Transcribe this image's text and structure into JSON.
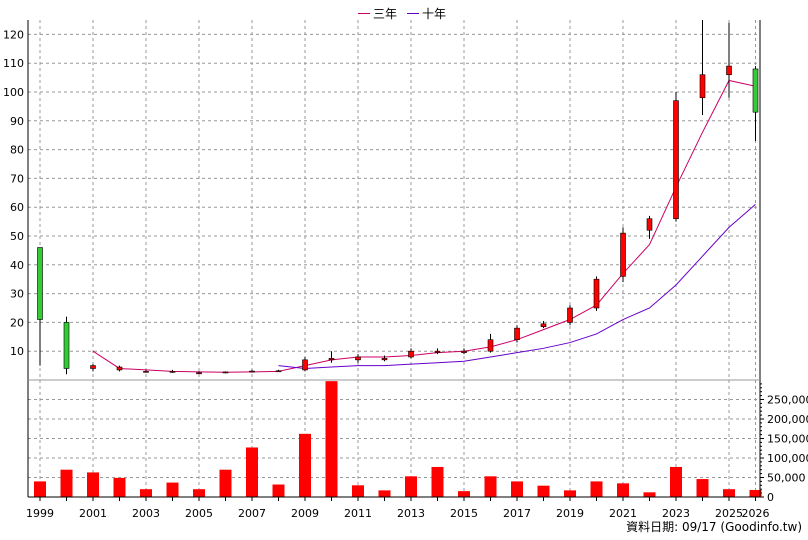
{
  "legend": {
    "three_year_label": "三年",
    "ten_year_label": "十年"
  },
  "footer": {
    "data_date": "資料日期: 09/17",
    "source": "(Goodinfo.tw)"
  },
  "colors": {
    "rise_candle": "#ff0000",
    "fall_candle": "#33cc33",
    "three_year_ma": "#cc0066",
    "ten_year_ma": "#6600cc",
    "volume_bar": "#ff0000",
    "grid": "#999999"
  },
  "chart_data": {
    "type": "candlestick_with_volume",
    "title": "",
    "x_tick_labels": [
      "1999",
      "2001",
      "2003",
      "2005",
      "2007",
      "2009",
      "2011",
      "2013",
      "2015",
      "2017",
      "2019",
      "2021",
      "2023",
      "2025",
      "2026"
    ],
    "price_axis": {
      "ylim": [
        0,
        125
      ],
      "ticks": [
        10,
        20,
        30,
        40,
        50,
        60,
        70,
        80,
        90,
        100,
        110,
        120
      ]
    },
    "volume_axis": {
      "ylim": [
        0,
        300000
      ],
      "ticks": [
        "0",
        "50,000",
        "100,000",
        "150,000",
        "200,000",
        "250,000"
      ],
      "tick_values": [
        0,
        50000,
        100000,
        150000,
        200000,
        250000
      ]
    },
    "grid": true,
    "candles": [
      {
        "year": 1999,
        "open": 46,
        "close": 21,
        "high": 46,
        "low": 5
      },
      {
        "year": 2000,
        "open": 20,
        "close": 4,
        "high": 22,
        "low": 2
      },
      {
        "year": 2001,
        "open": 4,
        "close": 5,
        "high": 5.5,
        "low": 3
      },
      {
        "year": 2002,
        "open": 3.5,
        "close": 4.5,
        "high": 5,
        "low": 3
      },
      {
        "year": 2003,
        "open": 3,
        "close": 3,
        "high": 3.5,
        "low": 2.8
      },
      {
        "year": 2004,
        "open": 2.8,
        "close": 3,
        "high": 3.5,
        "low": 2.5
      },
      {
        "year": 2005,
        "open": 2.5,
        "close": 2.5,
        "high": 3,
        "low": 2.3
      },
      {
        "year": 2006,
        "open": 2.5,
        "close": 2.8,
        "high": 3,
        "low": 2.3
      },
      {
        "year": 2007,
        "open": 2.8,
        "close": 3.1,
        "high": 3.5,
        "low": 2.6
      },
      {
        "year": 2008,
        "open": 3,
        "close": 3.2,
        "high": 3.5,
        "low": 2.8
      },
      {
        "year": 2009,
        "open": 3.5,
        "close": 7,
        "high": 8,
        "low": 3
      },
      {
        "year": 2010,
        "open": 7,
        "close": 7.5,
        "high": 10,
        "low": 6
      },
      {
        "year": 2011,
        "open": 7,
        "close": 8,
        "high": 9,
        "low": 6
      },
      {
        "year": 2012,
        "open": 7,
        "close": 7.5,
        "high": 8.5,
        "low": 6.5
      },
      {
        "year": 2013,
        "open": 8,
        "close": 10,
        "high": 11,
        "low": 7.5
      },
      {
        "year": 2014,
        "open": 9.5,
        "close": 10,
        "high": 11,
        "low": 9
      },
      {
        "year": 2015,
        "open": 9.5,
        "close": 10,
        "high": 11,
        "low": 9
      },
      {
        "year": 2016,
        "open": 10,
        "close": 14,
        "high": 16,
        "low": 9.5
      },
      {
        "year": 2017,
        "open": 14,
        "close": 18,
        "high": 19,
        "low": 13
      },
      {
        "year": 2018,
        "open": 18.5,
        "close": 19.5,
        "high": 20.5,
        "low": 18
      },
      {
        "year": 2019,
        "open": 20,
        "close": 25,
        "high": 26,
        "low": 19
      },
      {
        "year": 2020,
        "open": 25,
        "close": 35,
        "high": 36,
        "low": 24
      },
      {
        "year": 2021,
        "open": 36,
        "close": 51,
        "high": 53,
        "low": 34
      },
      {
        "year": 2022,
        "open": 52,
        "close": 56,
        "high": 57,
        "low": 49
      },
      {
        "year": 2023,
        "open": 56,
        "close": 97,
        "high": 100,
        "low": 55
      },
      {
        "year": 2024,
        "open": 98,
        "close": 106,
        "high": 125,
        "low": 92
      },
      {
        "year": 2025,
        "open": 106,
        "close": 109,
        "high": 124,
        "low": 98
      },
      {
        "year": 2026,
        "open": 108,
        "close": 93,
        "high": 109,
        "low": 83
      }
    ],
    "series": [
      {
        "name": "三年",
        "color": "#cc0066",
        "points": [
          [
            2001,
            10
          ],
          [
            2002,
            4
          ],
          [
            2003,
            3.5
          ],
          [
            2004,
            3
          ],
          [
            2005,
            2.8
          ],
          [
            2006,
            2.7
          ],
          [
            2007,
            2.8
          ],
          [
            2008,
            3
          ],
          [
            2009,
            5
          ],
          [
            2010,
            7
          ],
          [
            2011,
            8
          ],
          [
            2012,
            8
          ],
          [
            2013,
            8.5
          ],
          [
            2014,
            9.5
          ],
          [
            2015,
            10
          ],
          [
            2016,
            11.5
          ],
          [
            2017,
            14
          ],
          [
            2018,
            17.5
          ],
          [
            2019,
            21
          ],
          [
            2020,
            26
          ],
          [
            2021,
            37
          ],
          [
            2022,
            47
          ],
          [
            2023,
            67
          ],
          [
            2024,
            86
          ],
          [
            2025,
            104
          ],
          [
            2026,
            102
          ]
        ]
      },
      {
        "name": "十年",
        "color": "#6600cc",
        "points": [
          [
            2008,
            5
          ],
          [
            2009,
            4
          ],
          [
            2010,
            4.5
          ],
          [
            2011,
            5
          ],
          [
            2012,
            5
          ],
          [
            2013,
            5.5
          ],
          [
            2014,
            6
          ],
          [
            2015,
            6.5
          ],
          [
            2016,
            8
          ],
          [
            2017,
            9.5
          ],
          [
            2018,
            11
          ],
          [
            2019,
            13
          ],
          [
            2020,
            16
          ],
          [
            2021,
            21
          ],
          [
            2022,
            25
          ],
          [
            2023,
            33
          ],
          [
            2024,
            43
          ],
          [
            2025,
            53
          ],
          [
            2026,
            61
          ]
        ]
      }
    ],
    "volume": [
      {
        "year": 1999,
        "value": 40000
      },
      {
        "year": 2000,
        "value": 70000
      },
      {
        "year": 2001,
        "value": 63000
      },
      {
        "year": 2002,
        "value": 49000
      },
      {
        "year": 2003,
        "value": 20000
      },
      {
        "year": 2004,
        "value": 37000
      },
      {
        "year": 2005,
        "value": 20000
      },
      {
        "year": 2006,
        "value": 70000
      },
      {
        "year": 2007,
        "value": 127000
      },
      {
        "year": 2008,
        "value": 32000
      },
      {
        "year": 2009,
        "value": 162000
      },
      {
        "year": 2010,
        "value": 297000
      },
      {
        "year": 2011,
        "value": 30000
      },
      {
        "year": 2012,
        "value": 17000
      },
      {
        "year": 2013,
        "value": 53000
      },
      {
        "year": 2014,
        "value": 77000
      },
      {
        "year": 2015,
        "value": 15000
      },
      {
        "year": 2016,
        "value": 53000
      },
      {
        "year": 2017,
        "value": 40000
      },
      {
        "year": 2018,
        "value": 29000
      },
      {
        "year": 2019,
        "value": 17000
      },
      {
        "year": 2020,
        "value": 40000
      },
      {
        "year": 2021,
        "value": 35000
      },
      {
        "year": 2022,
        "value": 12000
      },
      {
        "year": 2023,
        "value": 77000
      },
      {
        "year": 2024,
        "value": 46000
      },
      {
        "year": 2025,
        "value": 20000
      },
      {
        "year": 2026,
        "value": 18000
      }
    ]
  }
}
